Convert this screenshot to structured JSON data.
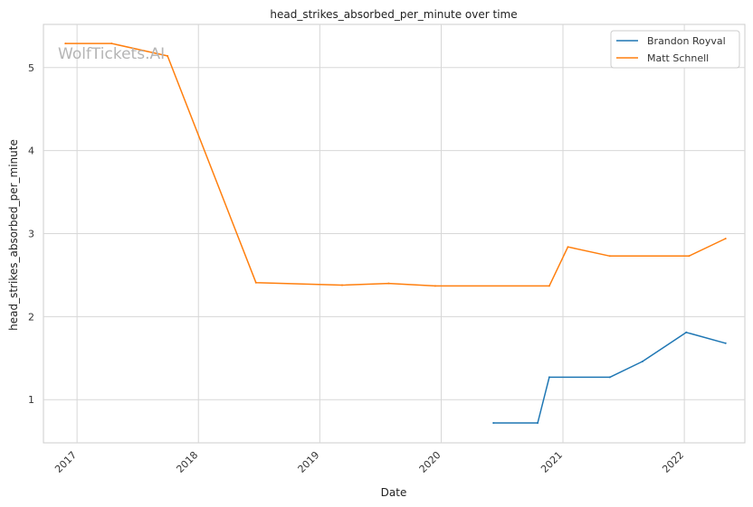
{
  "chart_data": {
    "type": "line",
    "title": "head_strikes_absorbed_per_minute over time",
    "xlabel": "Date",
    "ylabel": "head_strikes_absorbed_per_minute",
    "watermark": "WolfTickets.AI",
    "x_ticks": [
      "2017",
      "2018",
      "2019",
      "2020",
      "2021",
      "2022"
    ],
    "y_ticks": [
      1,
      2,
      3,
      4,
      5
    ],
    "xlim": [
      "2016-09-22",
      "2022-07-02"
    ],
    "ylim": [
      0.48,
      5.52
    ],
    "grid": true,
    "legend_position": "top-right",
    "series": [
      {
        "name": "Brandon Royval",
        "color": "#1f77b4",
        "points": [
          {
            "x": "2020-06-06",
            "y": 0.72
          },
          {
            "x": "2020-10-17",
            "y": 0.72
          },
          {
            "x": "2020-11-21",
            "y": 1.27
          },
          {
            "x": "2021-05-22",
            "y": 1.27
          },
          {
            "x": "2021-08-28",
            "y": 1.46
          },
          {
            "x": "2022-01-07",
            "y": 1.81
          },
          {
            "x": "2022-05-05",
            "y": 1.68
          }
        ]
      },
      {
        "name": "Matt Schnell",
        "color": "#ff7f0e",
        "points": [
          {
            "x": "2016-11-27",
            "y": 5.29
          },
          {
            "x": "2017-04-15",
            "y": 5.29
          },
          {
            "x": "2017-09-30",
            "y": 5.14
          },
          {
            "x": "2018-06-23",
            "y": 2.41
          },
          {
            "x": "2019-03-09",
            "y": 2.38
          },
          {
            "x": "2019-07-27",
            "y": 2.4
          },
          {
            "x": "2019-12-14",
            "y": 2.37
          },
          {
            "x": "2020-11-21",
            "y": 2.37
          },
          {
            "x": "2021-01-16",
            "y": 2.84
          },
          {
            "x": "2021-05-22",
            "y": 2.73
          },
          {
            "x": "2022-01-15",
            "y": 2.73
          },
          {
            "x": "2022-05-05",
            "y": 2.94
          }
        ]
      }
    ]
  }
}
